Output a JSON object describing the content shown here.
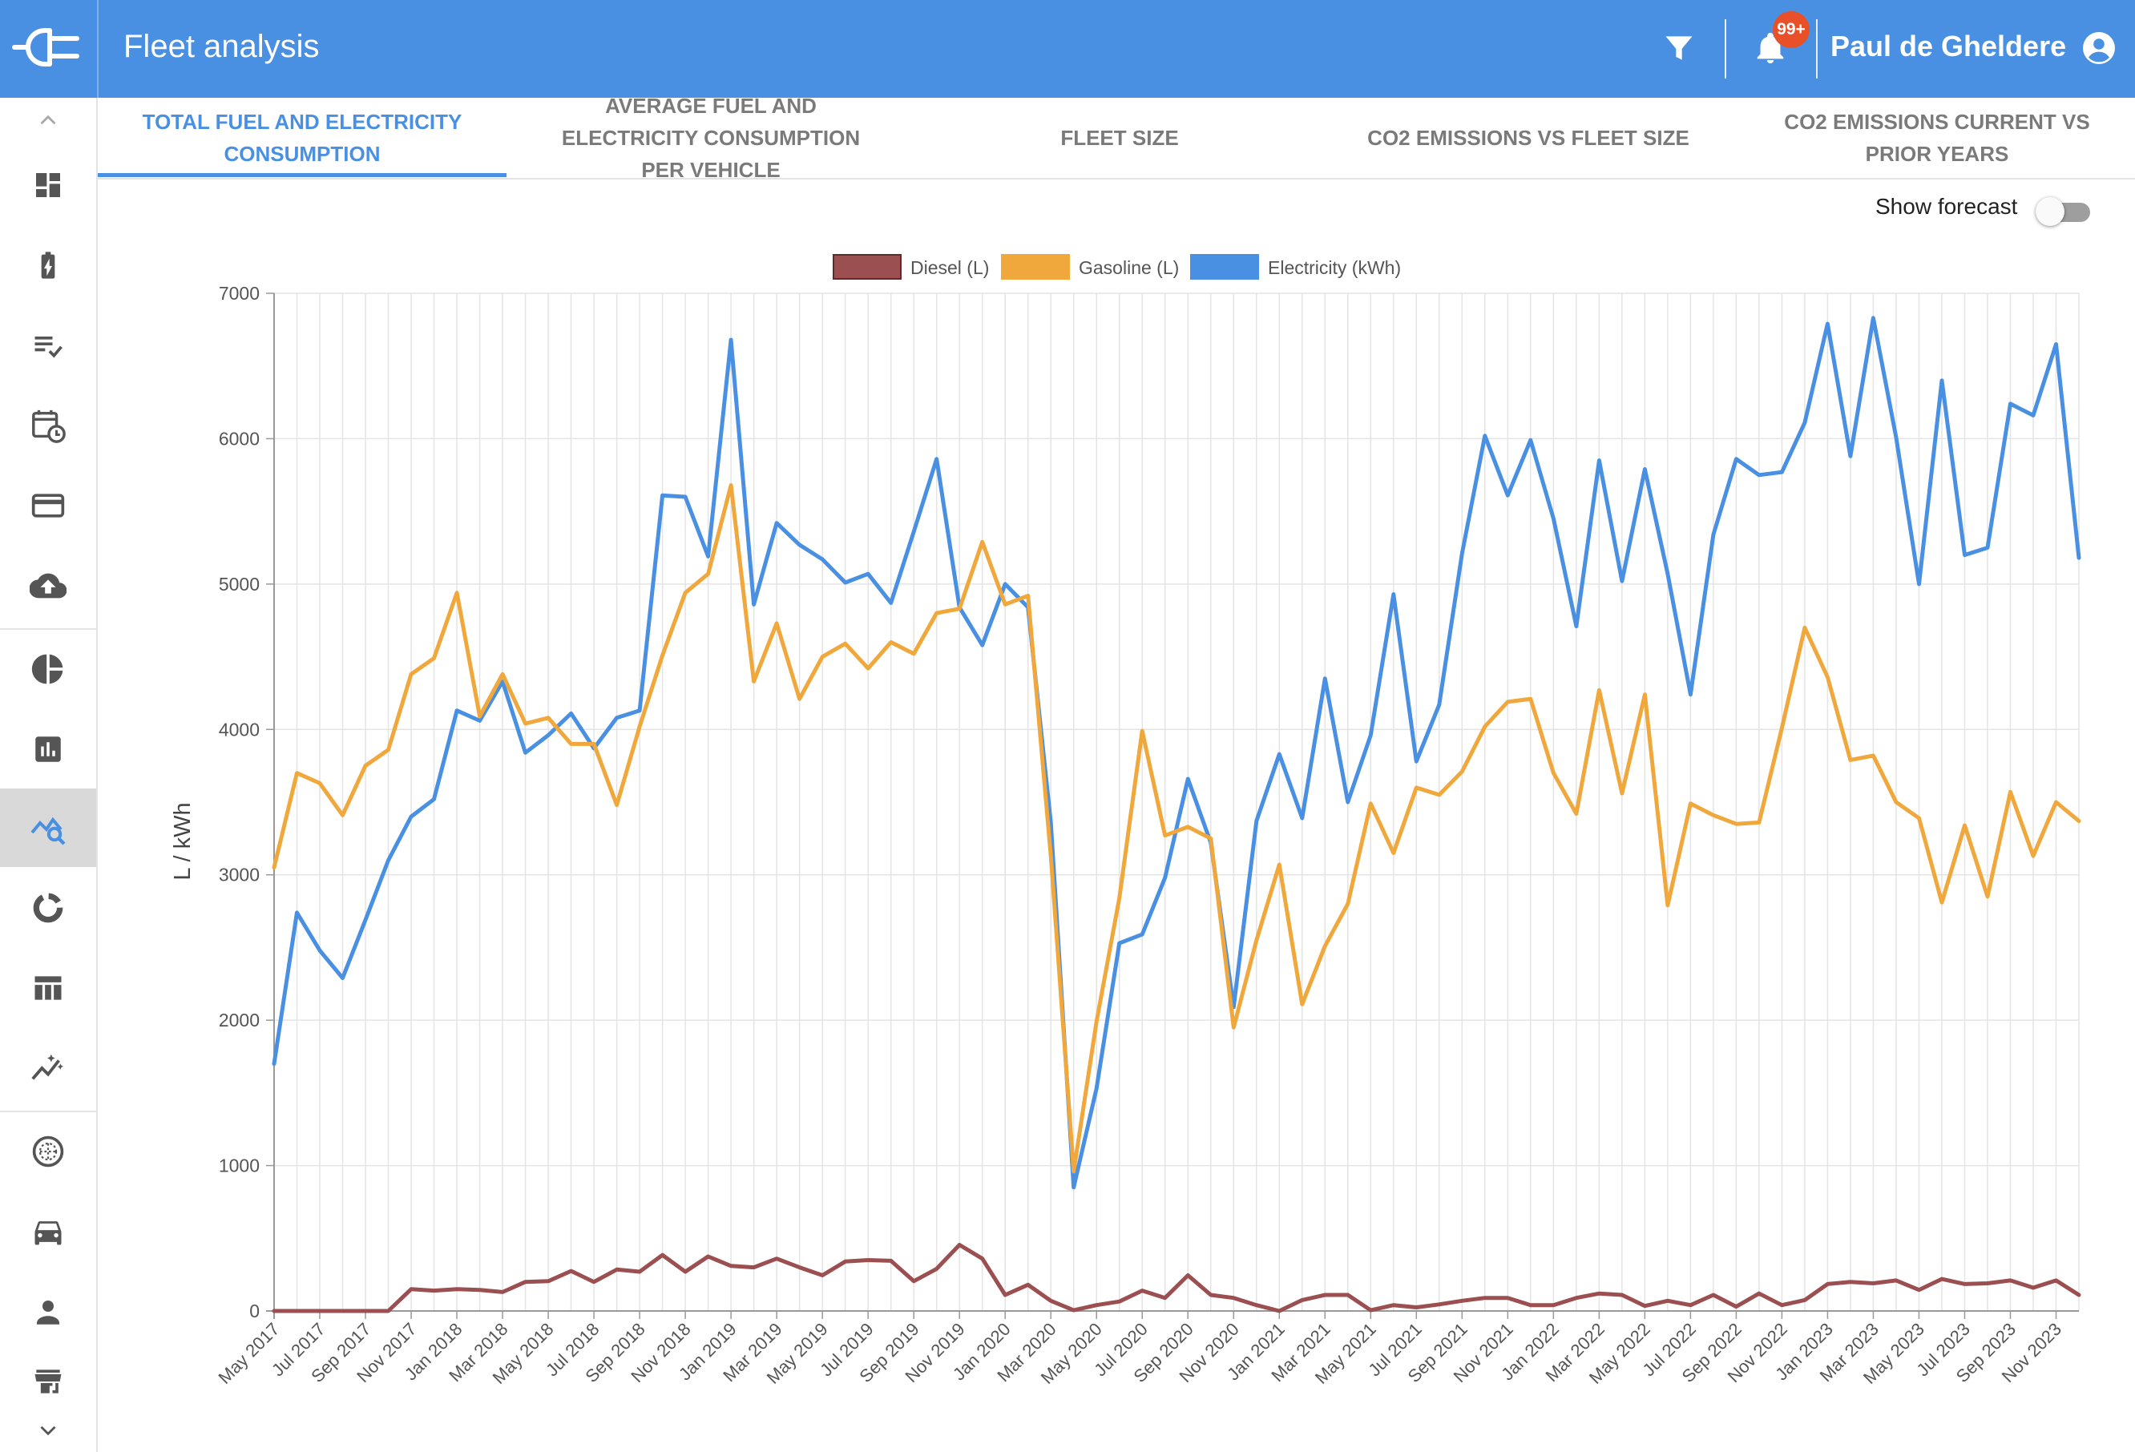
{
  "app": {
    "title": "Fleet analysis",
    "notification_count": "99+",
    "user_name": "Paul de Gheldere"
  },
  "colors": {
    "primary": "#4a90e2",
    "diesel": "#9b4f50",
    "gasoline": "#f0a83c",
    "electricity": "#4a90e2",
    "badge": "#e8502a"
  },
  "topbar_icons": [
    "logo-plug-icon",
    "filter-icon",
    "bell-icon",
    "account-circle-icon"
  ],
  "sidebar": {
    "items": [
      {
        "icon": "dashboard-icon"
      },
      {
        "icon": "battery-charging-icon"
      },
      {
        "icon": "checklist-icon"
      },
      {
        "icon": "calendar-clock-icon"
      },
      {
        "icon": "credit-card-icon"
      },
      {
        "icon": "cloud-upload-icon"
      },
      {
        "icon": "pie-chart-icon"
      },
      {
        "icon": "bar-chart-icon"
      },
      {
        "icon": "query-stats-icon",
        "active": true
      },
      {
        "icon": "donut-chart-icon"
      },
      {
        "icon": "table-icon"
      },
      {
        "icon": "auto-graph-icon"
      },
      {
        "icon": "globe-icon"
      },
      {
        "icon": "car-icon"
      },
      {
        "icon": "person-icon"
      },
      {
        "icon": "store-icon"
      }
    ]
  },
  "tabs": [
    {
      "label": "TOTAL FUEL AND ELECTRICITY CONSUMPTION",
      "active": true
    },
    {
      "label": "AVERAGE FUEL AND ELECTRICITY CONSUMPTION PER VEHICLE"
    },
    {
      "label": "FLEET SIZE"
    },
    {
      "label": "CO2 EMISSIONS VS FLEET SIZE"
    },
    {
      "label": "CO2 EMISSIONS CURRENT VS PRIOR YEARS"
    }
  ],
  "forecast": {
    "label": "Show forecast",
    "enabled": false
  },
  "chart_data": {
    "type": "line",
    "title": "",
    "xlabel": "",
    "ylabel": "L / kWh",
    "ylim": [
      0,
      7000
    ],
    "yticks": [
      0,
      1000,
      2000,
      3000,
      4000,
      5000,
      6000,
      7000
    ],
    "grid": true,
    "legend_position": "top-center",
    "x_start": "May 2017",
    "x_tick_labels": [
      "May 2017",
      "Jul 2017",
      "Sep 2017",
      "Nov 2017",
      "Jan 2018",
      "Mar 2018",
      "May 2018",
      "Jul 2018",
      "Sep 2018",
      "Nov 2018",
      "Jan 2019",
      "Mar 2019",
      "May 2019",
      "Jul 2019",
      "Sep 2019",
      "Nov 2019",
      "Jan 2020",
      "Mar 2020",
      "May 2020",
      "Jul 2020",
      "Sep 2020",
      "Nov 2020",
      "Jan 2021",
      "Mar 2021",
      "May 2021",
      "Jul 2021",
      "Sep 2021",
      "Nov 2021",
      "Jan 2022",
      "Mar 2022",
      "May 2022",
      "Jul 2022",
      "Sep 2022",
      "Nov 2022",
      "Jan 2023",
      "Mar 2023",
      "May 2023",
      "Jul 2023",
      "Sep 2023",
      "Nov 2023"
    ],
    "series": [
      {
        "name": "Diesel (L)",
        "color": "#9b4f50",
        "values": [
          0,
          0,
          0,
          0,
          0,
          0,
          150,
          140,
          150,
          145,
          130,
          200,
          205,
          275,
          200,
          285,
          270,
          385,
          270,
          375,
          310,
          300,
          360,
          300,
          245,
          340,
          350,
          345,
          205,
          290,
          455,
          360,
          110,
          180,
          70,
          5,
          40,
          65,
          140,
          90,
          245,
          110,
          90,
          40,
          0,
          75,
          110,
          110,
          5,
          40,
          25,
          45,
          70,
          90,
          90,
          40,
          40,
          90,
          120,
          110,
          35,
          70,
          40,
          110,
          30,
          120,
          40,
          75,
          185,
          200,
          190,
          210,
          145,
          220,
          185,
          190,
          210,
          160,
          210,
          110
        ]
      },
      {
        "name": "Gasoline (L)",
        "color": "#f0a83c",
        "values": [
          3050,
          3700,
          3630,
          3410,
          3750,
          3860,
          4380,
          4490,
          4940,
          4090,
          4380,
          4040,
          4080,
          3900,
          3900,
          3480,
          4020,
          4510,
          4940,
          5070,
          5680,
          4330,
          4730,
          4210,
          4500,
          4590,
          4420,
          4600,
          4520,
          4800,
          4830,
          5290,
          4860,
          4920,
          3130,
          960,
          1990,
          2840,
          3990,
          3270,
          3330,
          3250,
          1950,
          2550,
          3070,
          2110,
          2510,
          2800,
          3490,
          3150,
          3600,
          3550,
          3710,
          4020,
          4190,
          4210,
          3700,
          3420,
          4270,
          3560,
          4240,
          2790,
          3490,
          3410,
          3350,
          3360,
          4010,
          4700,
          4360,
          3790,
          3820,
          3500,
          3390,
          2810,
          3340,
          2850,
          3570,
          3130,
          3500,
          3370
        ]
      },
      {
        "name": "Electricity (kWh)",
        "color": "#4a90e2",
        "values": [
          1700,
          2740,
          2480,
          2290,
          2690,
          3100,
          3400,
          3520,
          4130,
          4060,
          4330,
          3840,
          3960,
          4110,
          3870,
          4080,
          4130,
          5610,
          5600,
          5190,
          6680,
          4860,
          5420,
          5270,
          5170,
          5010,
          5070,
          4870,
          5360,
          5860,
          4840,
          4580,
          5000,
          4840,
          3360,
          850,
          1530,
          2530,
          2590,
          2980,
          3660,
          3220,
          2090,
          3370,
          3830,
          3390,
          4350,
          3500,
          3960,
          4930,
          3780,
          4170,
          5210,
          6020,
          5610,
          5990,
          5450,
          4710,
          5850,
          5020,
          5790,
          5070,
          4240,
          5340,
          5860,
          5750,
          5770,
          6110,
          6790,
          5880,
          6830,
          6010,
          5000,
          6400,
          5200,
          5250,
          6240,
          6160,
          6650,
          5180
        ]
      }
    ]
  }
}
